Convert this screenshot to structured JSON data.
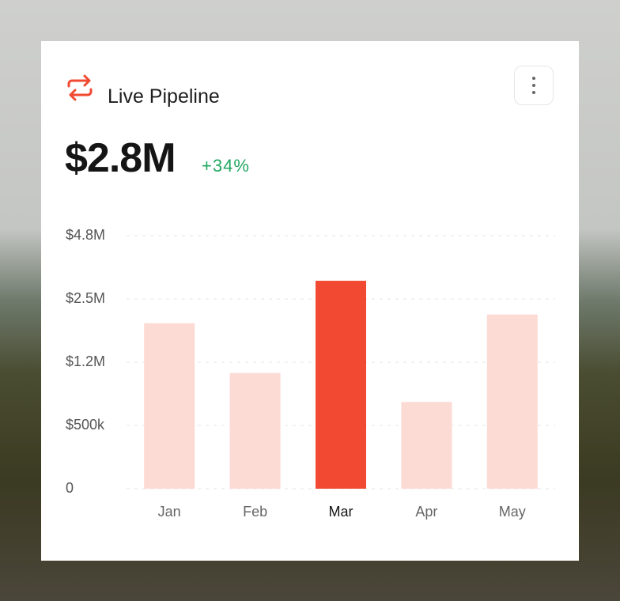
{
  "card": {
    "title": "Live Pipeline",
    "value": "$2.8M",
    "change": "+34%"
  },
  "chart_data": {
    "type": "bar",
    "categories": [
      "Jan",
      "Feb",
      "Mar",
      "Apr",
      "May"
    ],
    "values": [
      2000000,
      1080000,
      3160000,
      760000,
      2180000
    ],
    "colors": [
      "#fddbd5",
      "#fddbd5",
      "#f24a32",
      "#fddbd5",
      "#fddbd5"
    ],
    "label_colors": [
      "#666666",
      "#666666",
      "#151515",
      "#666666",
      "#666666"
    ],
    "ylim": [
      0,
      4800000
    ],
    "yticks": [
      0,
      {
        "value": 500000,
        "label": "$500k"
      },
      {
        "value": 1200000,
        "label": "$1.2M"
      },
      {
        "value": 2500000,
        "label": "$2.5M"
      },
      {
        "value": 4800000,
        "label": "$4.8M"
      }
    ],
    "grid": true
  }
}
